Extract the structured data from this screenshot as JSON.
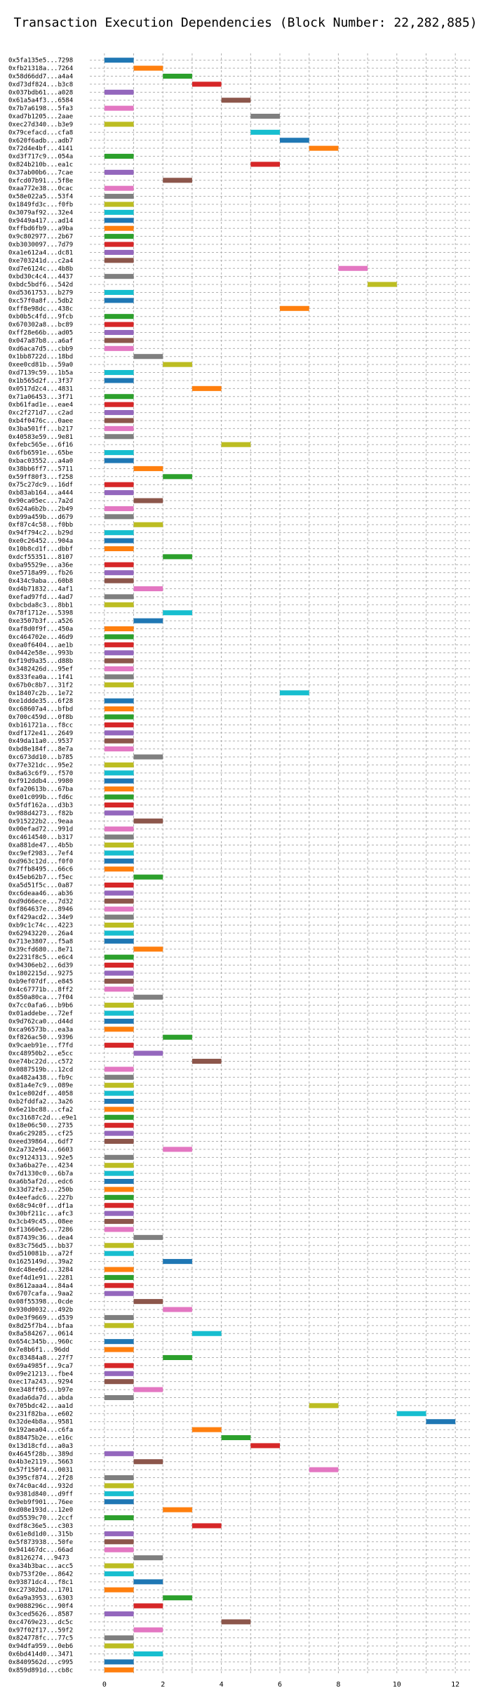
{
  "chart_data": {
    "type": "bar",
    "orientation": "horizontal-gantt",
    "title": "Transaction Execution Dependencies (Block Number: 22,282,885)",
    "xlabel": "",
    "ylabel": "",
    "xlim": [
      -0.5,
      12.5
    ],
    "xticks": [
      0,
      2,
      4,
      6,
      8,
      10,
      12
    ],
    "grid": true,
    "colors": [
      "#1f77b4",
      "#ff7f0e",
      "#2ca02c",
      "#d62728",
      "#9467bd",
      "#8c564b",
      "#e377c2",
      "#7f7f7f",
      "#bcbd22",
      "#17becf"
    ],
    "rows": [
      {
        "label": "0x5fa135e5...7298",
        "start": 0
      },
      {
        "label": "0xfb21318a...7264",
        "start": 1
      },
      {
        "label": "0x58d66dd7...a4a4",
        "start": 2
      },
      {
        "label": "0xd73df824...b3c8",
        "start": 3
      },
      {
        "label": "0x037bdb61...a028",
        "start": 0
      },
      {
        "label": "0x61a5a4f3...6584",
        "start": 4
      },
      {
        "label": "0x7b7a6198...5fa3",
        "start": 0
      },
      {
        "label": "0xad7b1205...2aae",
        "start": 5
      },
      {
        "label": "0xec27d340...b3e9",
        "start": 0
      },
      {
        "label": "0x79cefacd...cfa8",
        "start": 5
      },
      {
        "label": "0x620f6adb...adb7",
        "start": 6
      },
      {
        "label": "0x72d4e4bf...4141",
        "start": 7
      },
      {
        "label": "0xd3f717c9...054a",
        "start": 0
      },
      {
        "label": "0x824b210b...ea1c",
        "start": 5
      },
      {
        "label": "0x37ab00b6...7cae",
        "start": 0
      },
      {
        "label": "0xfcd07b91...5f8e",
        "start": 2
      },
      {
        "label": "0xaa772e38...0cac",
        "start": 0
      },
      {
        "label": "0x58e022a5...53f4",
        "start": 0
      },
      {
        "label": "0x1849fd3c...f0fb",
        "start": 0
      },
      {
        "label": "0x3079af92...32e4",
        "start": 0
      },
      {
        "label": "0x9449a417...ad14",
        "start": 0
      },
      {
        "label": "0xffbd6fb9...a9ba",
        "start": 0
      },
      {
        "label": "0x9c802977...2b67",
        "start": 0
      },
      {
        "label": "0xb3030097...7d79",
        "start": 0
      },
      {
        "label": "0xa1e612a4...dc81",
        "start": 0
      },
      {
        "label": "0xe703241d...c2a4",
        "start": 0
      },
      {
        "label": "0xd7e6124c...4b8b",
        "start": 8
      },
      {
        "label": "0xbd30c4c4...4437",
        "start": 0
      },
      {
        "label": "0xbdc5bdf6...542d",
        "start": 9
      },
      {
        "label": "0xd5361753...b279",
        "start": 0
      },
      {
        "label": "0xc57f0a8f...5db2",
        "start": 0
      },
      {
        "label": "0xff8e98dc...438c",
        "start": 6
      },
      {
        "label": "0xb0b5c4fd...9fcb",
        "start": 0
      },
      {
        "label": "0x670302a8...bc89",
        "start": 0
      },
      {
        "label": "0xff28e66b...ad05",
        "start": 0
      },
      {
        "label": "0x047a87b8...a6af",
        "start": 0
      },
      {
        "label": "0xd6aca7d5...cbb9",
        "start": 0
      },
      {
        "label": "0x1bb8722d...18bd",
        "start": 1
      },
      {
        "label": "0xee0cd81b...59a0",
        "start": 2
      },
      {
        "label": "0xd7139c59...1b5a",
        "start": 0
      },
      {
        "label": "0x1b565d2f...3f37",
        "start": 0
      },
      {
        "label": "0x0517d2c4...4831",
        "start": 3
      },
      {
        "label": "0x71a06453...3f71",
        "start": 0
      },
      {
        "label": "0xb61fad1e...eae4",
        "start": 0
      },
      {
        "label": "0xc2f271d7...c2ad",
        "start": 0
      },
      {
        "label": "0xb4f0476c...0aee",
        "start": 0
      },
      {
        "label": "0x3ba501ff...b217",
        "start": 0
      },
      {
        "label": "0x40583e59...9e81",
        "start": 0
      },
      {
        "label": "0xfebc565e...6f16",
        "start": 4
      },
      {
        "label": "0x6fb6591e...65be",
        "start": 0
      },
      {
        "label": "0xbac03552...a4a0",
        "start": 0
      },
      {
        "label": "0x38bb6ff7...5711",
        "start": 1
      },
      {
        "label": "0x59ff80f3...f258",
        "start": 2
      },
      {
        "label": "0x75c27dc9...16df",
        "start": 0
      },
      {
        "label": "0xb83ab164...a444",
        "start": 0
      },
      {
        "label": "0x90ca05ec...7a2d",
        "start": 1
      },
      {
        "label": "0x624a6b2b...2b49",
        "start": 0
      },
      {
        "label": "0xb99a459b...d679",
        "start": 0
      },
      {
        "label": "0xf87c4c58...f0bb",
        "start": 1
      },
      {
        "label": "0x94f794c2...b29d",
        "start": 0
      },
      {
        "label": "0xe0c26452...904a",
        "start": 0
      },
      {
        "label": "0x10b8cd1f...dbbf",
        "start": 0
      },
      {
        "label": "0xdcf55351...8107",
        "start": 2
      },
      {
        "label": "0xba95529e...a36e",
        "start": 0
      },
      {
        "label": "0xe5718a99...fb26",
        "start": 0
      },
      {
        "label": "0x434c9aba...60b8",
        "start": 0
      },
      {
        "label": "0xd4b71832...4af1",
        "start": 1
      },
      {
        "label": "0xefad97fd...4ad7",
        "start": 0
      },
      {
        "label": "0xbcbda8c3...8bb1",
        "start": 0
      },
      {
        "label": "0x78f1712e...5398",
        "start": 2
      },
      {
        "label": "0xe3507b3f...a526",
        "start": 1
      },
      {
        "label": "0xaf8d0f9f...450a",
        "start": 0
      },
      {
        "label": "0xc464702e...46d9",
        "start": 0
      },
      {
        "label": "0xea0f6404...ae1b",
        "start": 0
      },
      {
        "label": "0x0442e58e...993b",
        "start": 0
      },
      {
        "label": "0xf19d9a35...d88b",
        "start": 0
      },
      {
        "label": "0x3482426d...95ef",
        "start": 0
      },
      {
        "label": "0x833fea0a...1f41",
        "start": 0
      },
      {
        "label": "0x67b0c8b7...31f2",
        "start": 0
      },
      {
        "label": "0x18407c2b...1e72",
        "start": 6
      },
      {
        "label": "0xe1ddde35...6f28",
        "start": 0
      },
      {
        "label": "0xc68607a4...bfbd",
        "start": 0
      },
      {
        "label": "0x700c459d...0f8b",
        "start": 0
      },
      {
        "label": "0xb161721a...f8cc",
        "start": 0
      },
      {
        "label": "0xdf172e41...2649",
        "start": 0
      },
      {
        "label": "0x49da11a0...9537",
        "start": 0
      },
      {
        "label": "0xbd8e184f...8e7a",
        "start": 0
      },
      {
        "label": "0xc673dd10...b785",
        "start": 1
      },
      {
        "label": "0x77e321dc...95e2",
        "start": 0
      },
      {
        "label": "0x8a63c6f9...f570",
        "start": 0
      },
      {
        "label": "0xf912ddb4...9980",
        "start": 0
      },
      {
        "label": "0xfa20613b...67ba",
        "start": 0
      },
      {
        "label": "0xe01c099b...fd6c",
        "start": 0
      },
      {
        "label": "0x5fdf162a...d3b3",
        "start": 0
      },
      {
        "label": "0x988d4273...f82b",
        "start": 0
      },
      {
        "label": "0x915222b2...9eaa",
        "start": 1
      },
      {
        "label": "0x00efad72...991d",
        "start": 0
      },
      {
        "label": "0xc4614540...b317",
        "start": 0
      },
      {
        "label": "0xa881de47...4b5b",
        "start": 0
      },
      {
        "label": "0xc9ef2983...7ef4",
        "start": 0
      },
      {
        "label": "0xd963c12d...f0f0",
        "start": 0
      },
      {
        "label": "0x7ffb8495...66c6",
        "start": 0
      },
      {
        "label": "0x45eb62b7...f5ec",
        "start": 1
      },
      {
        "label": "0xa5d51f5c...0a87",
        "start": 0
      },
      {
        "label": "0xc6deaa46...ab36",
        "start": 0
      },
      {
        "label": "0xd9d66ece...7d32",
        "start": 0
      },
      {
        "label": "0xf864637e...8946",
        "start": 0
      },
      {
        "label": "0xf429acd2...34e9",
        "start": 0
      },
      {
        "label": "0xb9c1c74c...4223",
        "start": 0
      },
      {
        "label": "0x62943220...26a4",
        "start": 0
      },
      {
        "label": "0x713e3807...f5a8",
        "start": 0
      },
      {
        "label": "0x39cfd680...8e71",
        "start": 1
      },
      {
        "label": "0x2231f8c5...e6c4",
        "start": 0
      },
      {
        "label": "0x94306eb2...6d39",
        "start": 0
      },
      {
        "label": "0x1802215d...9275",
        "start": 0
      },
      {
        "label": "0xb9ef07df...e845",
        "start": 0
      },
      {
        "label": "0x4c67771b...8ff2",
        "start": 0
      },
      {
        "label": "0x850a80ca...7f04",
        "start": 1
      },
      {
        "label": "0x7cc0afa6...b9b6",
        "start": 0
      },
      {
        "label": "0x01addebe...72ef",
        "start": 0
      },
      {
        "label": "0x9d762ca0...d44d",
        "start": 0
      },
      {
        "label": "0xca96573b...ea3a",
        "start": 0
      },
      {
        "label": "0xf826ac50...9396",
        "start": 2
      },
      {
        "label": "0x9caeb91e...f7fd",
        "start": 0
      },
      {
        "label": "0xc48950b2...e5cc",
        "start": 1
      },
      {
        "label": "0xe74bc22d...c572",
        "start": 3
      },
      {
        "label": "0x0887519b...12cd",
        "start": 0
      },
      {
        "label": "0xa482a438...fb9c",
        "start": 0
      },
      {
        "label": "0x81a4e7c9...089e",
        "start": 0
      },
      {
        "label": "0x1ce802df...4058",
        "start": 0
      },
      {
        "label": "0xb2fddfa2...3a26",
        "start": 0
      },
      {
        "label": "0x6e21bc88...cfa2",
        "start": 0
      },
      {
        "label": "0xc31687c2d...e9e1",
        "start": 0
      },
      {
        "label": "0x18e06c50...2735",
        "start": 0
      },
      {
        "label": "0xa6c29285...cf25",
        "start": 0
      },
      {
        "label": "0xeed39864...6df7",
        "start": 0
      },
      {
        "label": "0x2a732e94...6603",
        "start": 2
      },
      {
        "label": "0xc9124313...92e5",
        "start": 0
      },
      {
        "label": "0x3a6ba27e...4234",
        "start": 0
      },
      {
        "label": "0x7d1330c0...6b7a",
        "start": 0
      },
      {
        "label": "0xa6b5af2d...edc6",
        "start": 0
      },
      {
        "label": "0x33d72fe3...250b",
        "start": 0
      },
      {
        "label": "0x4eefadc6...227b",
        "start": 0
      },
      {
        "label": "0x68c94c0f...df1a",
        "start": 0
      },
      {
        "label": "0x30bf211c...afc3",
        "start": 0
      },
      {
        "label": "0x3cb49c45...08ee",
        "start": 0
      },
      {
        "label": "0xf13660e5...7286",
        "start": 0
      },
      {
        "label": "0x87439c36...dea4",
        "start": 1
      },
      {
        "label": "0x83c756d5...bb37",
        "start": 0
      },
      {
        "label": "0xd510081b...a72f",
        "start": 0
      },
      {
        "label": "0x1625149d...39a2",
        "start": 2
      },
      {
        "label": "0xdc48ee6d...3284",
        "start": 0
      },
      {
        "label": "0xef4d1e91...2281",
        "start": 0
      },
      {
        "label": "0x8612aaa4...84a4",
        "start": 0
      },
      {
        "label": "0x6707cafa...9aa2",
        "start": 0
      },
      {
        "label": "0x08f55398...0cde",
        "start": 1
      },
      {
        "label": "0x930d0032...492b",
        "start": 2
      },
      {
        "label": "0x0e3f9669...d539",
        "start": 0
      },
      {
        "label": "0x8d25f7b4...bfaa",
        "start": 0
      },
      {
        "label": "0x8a584267...0614",
        "start": 3
      },
      {
        "label": "0x654c345b...960c",
        "start": 0
      },
      {
        "label": "0x7e8b6f1...96dd",
        "start": 0
      },
      {
        "label": "0xc83484a8...27f7",
        "start": 2
      },
      {
        "label": "0x69a4985f...9ca7",
        "start": 0
      },
      {
        "label": "0x09e21213...fbe4",
        "start": 0
      },
      {
        "label": "0xec17a243...9294",
        "start": 0
      },
      {
        "label": "0xe348ff05...b97e",
        "start": 1
      },
      {
        "label": "0xada6da7d...abda",
        "start": 0
      },
      {
        "label": "0x705bdc42...aa1d",
        "start": 7
      },
      {
        "label": "0x231f82ba...e602",
        "start": 10
      },
      {
        "label": "0x32de4b8a...9581",
        "start": 11
      },
      {
        "label": "0x192aea04...c6fa",
        "start": 3
      },
      {
        "label": "0x88475b2e...e16c",
        "start": 4
      },
      {
        "label": "0x13d18cfd...a0a3",
        "start": 5
      },
      {
        "label": "0x4645f28b...389d",
        "start": 0
      },
      {
        "label": "0x4b3e2119...5663",
        "start": 1
      },
      {
        "label": "0x57f150f4...0031",
        "start": 7
      },
      {
        "label": "0x395cf874...2f28",
        "start": 0
      },
      {
        "label": "0x74c0ac4d...932d",
        "start": 0
      },
      {
        "label": "0x9381d840...d9ff",
        "start": 0
      },
      {
        "label": "0x9eb9f901...76ee",
        "start": 0
      },
      {
        "label": "0xd08e193d...12e0",
        "start": 2
      },
      {
        "label": "0xd5539c70...2ccf",
        "start": 0
      },
      {
        "label": "0xdf8c36e5...c303",
        "start": 3
      },
      {
        "label": "0x61e8d1d0...315b",
        "start": 0
      },
      {
        "label": "0x5f873938...50fe",
        "start": 0
      },
      {
        "label": "0x941467dc...66ad",
        "start": 0
      },
      {
        "label": "0x8126274...9473",
        "start": 1
      },
      {
        "label": "0xa34b3bac...acc5",
        "start": 0
      },
      {
        "label": "0xb753f20e...8642",
        "start": 0
      },
      {
        "label": "0x93871dc4...f8c1",
        "start": 1
      },
      {
        "label": "0xc27302bd...1701",
        "start": 0
      },
      {
        "label": "0x6a9a3953...6303",
        "start": 2
      },
      {
        "label": "0x9088296c...90f4",
        "start": 1
      },
      {
        "label": "0x3ced5626...8587",
        "start": 0
      },
      {
        "label": "0xc4769e23...dc5c",
        "start": 4
      },
      {
        "label": "0x97f02f17...59f2",
        "start": 1
      },
      {
        "label": "0x824778fc...77c5",
        "start": 0
      },
      {
        "label": "0x94dfa959...0eb6",
        "start": 0
      },
      {
        "label": "0x6bd414d0...3471",
        "start": 1
      },
      {
        "label": "0x8409562d...c995",
        "start": 0
      },
      {
        "label": "0x859d891d...cb8c",
        "start": 0
      }
    ]
  }
}
